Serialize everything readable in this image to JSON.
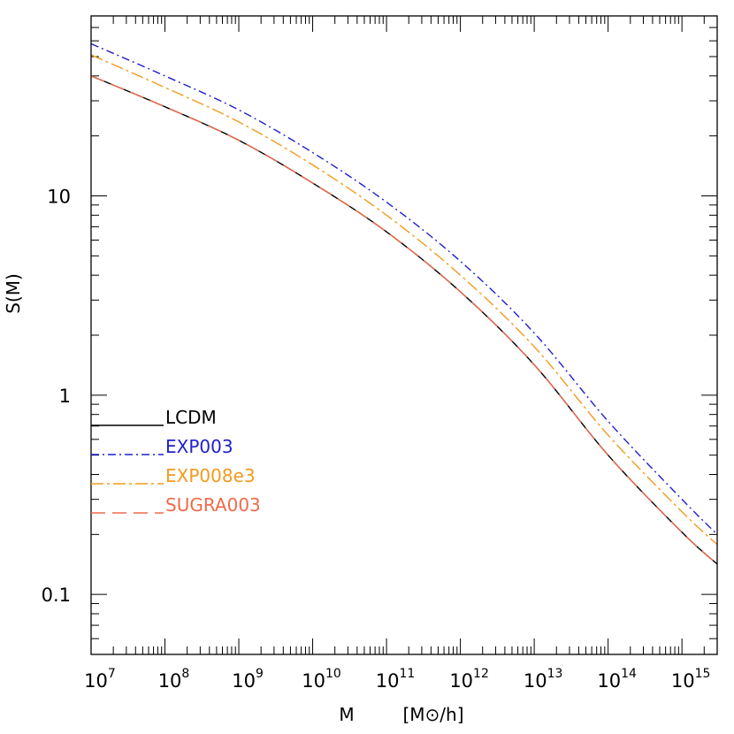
{
  "chart_data": {
    "type": "line",
    "title": "",
    "xlabel": "M",
    "xlabel_unit": "[M⊙/h]",
    "ylabel": "S(M)",
    "xscale": "log",
    "yscale": "log",
    "xlim": [
      10000000.0,
      3000000000000000.0
    ],
    "ylim": [
      0.05,
      80
    ],
    "x_ticks": [
      {
        "value": 10000000.0,
        "base": "10",
        "exp": "7"
      },
      {
        "value": 100000000.0,
        "base": "10",
        "exp": "8"
      },
      {
        "value": 1000000000.0,
        "base": "10",
        "exp": "9"
      },
      {
        "value": 10000000000.0,
        "base": "10",
        "exp": "10"
      },
      {
        "value": 100000000000.0,
        "base": "10",
        "exp": "11"
      },
      {
        "value": 1000000000000.0,
        "base": "10",
        "exp": "12"
      },
      {
        "value": 10000000000000.0,
        "base": "10",
        "exp": "13"
      },
      {
        "value": 100000000000000.0,
        "base": "10",
        "exp": "14"
      },
      {
        "value": 1000000000000000.0,
        "base": "10",
        "exp": "15"
      }
    ],
    "y_ticks": [
      {
        "value": 0.1,
        "label": "0.1"
      },
      {
        "value": 1,
        "label": "1"
      },
      {
        "value": 10,
        "label": "10"
      }
    ],
    "grid": false,
    "legend": "left",
    "x": [
      10000000.0,
      100000000.0,
      1000000000.0,
      10000000000.0,
      100000000000.0,
      1000000000000.0,
      10000000000000.0,
      100000000000000.0,
      1000000000000000.0,
      3000000000000000.0
    ],
    "series": [
      {
        "name": "LCDM",
        "color": "#000000",
        "dash": "solid",
        "values": [
          40.0,
          28.0,
          19.0,
          11.6,
          6.6,
          3.3,
          1.42,
          0.5,
          0.205,
          0.142
        ]
      },
      {
        "name": "EXP003",
        "color": "#1f1fd0",
        "dash": "dashdot",
        "values": [
          58.0,
          40.0,
          27.0,
          16.5,
          9.3,
          4.7,
          2.05,
          0.74,
          0.3,
          0.2
        ]
      },
      {
        "name": "EXP008e3",
        "color": "#f39a1e",
        "dash": "longdash",
        "values": [
          51.0,
          35.0,
          23.5,
          14.3,
          8.0,
          4.0,
          1.75,
          0.63,
          0.26,
          0.178
        ]
      },
      {
        "name": "SUGRA003",
        "color": "#ef6a4b",
        "dash": "dashed",
        "values": [
          40.0,
          28.0,
          19.0,
          11.6,
          6.6,
          3.3,
          1.42,
          0.5,
          0.205,
          0.142
        ]
      }
    ]
  }
}
